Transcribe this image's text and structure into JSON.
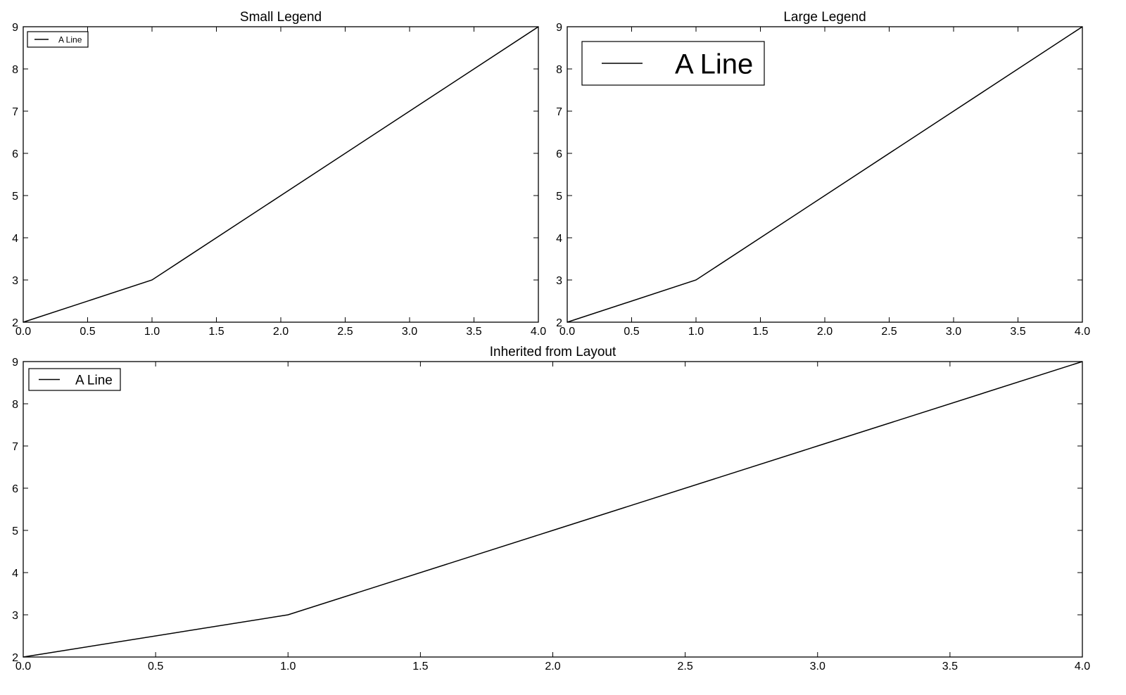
{
  "chart_data": [
    {
      "type": "line",
      "title": "Small Legend",
      "x": [
        0,
        1,
        2,
        3,
        4
      ],
      "series": [
        {
          "name": "A Line",
          "values": [
            2,
            3,
            5,
            7,
            9
          ]
        }
      ],
      "xlim": [
        0,
        4
      ],
      "ylim": [
        2,
        9
      ],
      "x_ticks": [
        "0.0",
        "0.5",
        "1.0",
        "1.5",
        "2.0",
        "2.5",
        "3.0",
        "3.5",
        "4.0"
      ],
      "y_ticks": [
        "2",
        "3",
        "4",
        "5",
        "6",
        "7",
        "8",
        "9"
      ],
      "legend": {
        "placement": "top-left",
        "size": "small",
        "labels": [
          "A Line"
        ]
      },
      "grid": false
    },
    {
      "type": "line",
      "title": "Large Legend",
      "x": [
        0,
        1,
        2,
        3,
        4
      ],
      "series": [
        {
          "name": "A Line",
          "values": [
            2,
            3,
            5,
            7,
            9
          ]
        }
      ],
      "xlim": [
        0,
        4
      ],
      "ylim": [
        2,
        9
      ],
      "x_ticks": [
        "0.0",
        "0.5",
        "1.0",
        "1.5",
        "2.0",
        "2.5",
        "3.0",
        "3.5",
        "4.0"
      ],
      "y_ticks": [
        "2",
        "3",
        "4",
        "5",
        "6",
        "7",
        "8",
        "9"
      ],
      "legend": {
        "placement": "top-left",
        "size": "large",
        "labels": [
          "A Line"
        ]
      },
      "grid": false
    },
    {
      "type": "line",
      "title": "Inherited from Layout",
      "x": [
        0,
        1,
        2,
        3,
        4
      ],
      "series": [
        {
          "name": "A Line",
          "values": [
            2,
            3,
            5,
            7,
            9
          ]
        }
      ],
      "xlim": [
        0,
        4
      ],
      "ylim": [
        2,
        9
      ],
      "x_ticks": [
        "0.0",
        "0.5",
        "1.0",
        "1.5",
        "2.0",
        "2.5",
        "3.0",
        "3.5",
        "4.0"
      ],
      "y_ticks": [
        "2",
        "3",
        "4",
        "5",
        "6",
        "7",
        "8",
        "9"
      ],
      "legend": {
        "placement": "top-left",
        "size": "medium",
        "labels": [
          "A Line"
        ]
      },
      "grid": false
    }
  ],
  "colors": {
    "line": "#000000",
    "axes": "#000000",
    "background": "#ffffff"
  }
}
